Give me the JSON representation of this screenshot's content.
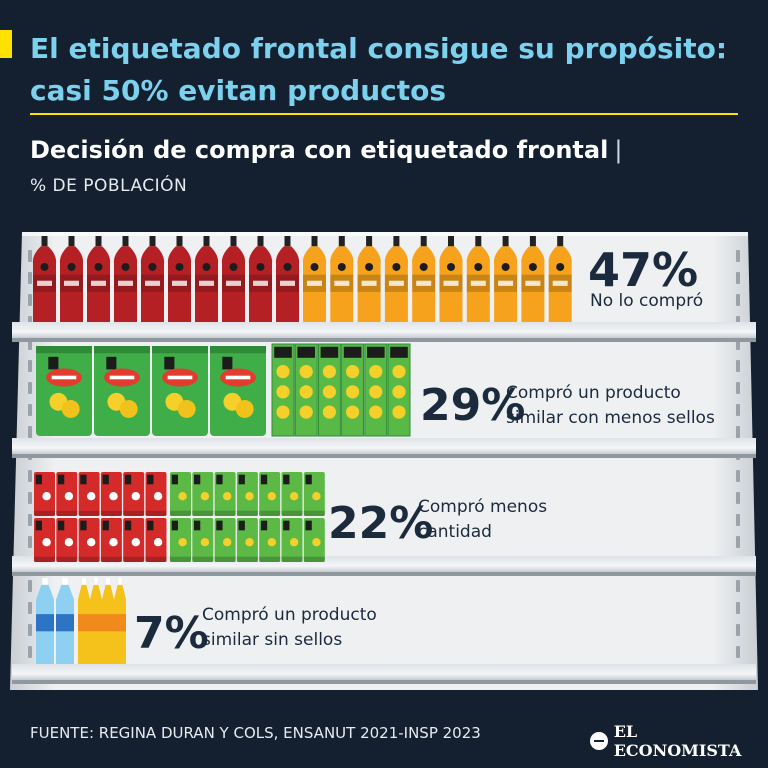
{
  "header": {
    "title": "El etiquetado frontal consigue su propósito: casi 50% evitan productos",
    "subtitle": "Decisión de compra con etiquetado frontal",
    "subtitle_separator": "|",
    "unit": "% DE POBLACIÓN"
  },
  "chart_data": {
    "type": "bar",
    "title": "Decisión de compra con etiquetado frontal",
    "ylabel": "% DE POBLACIÓN",
    "categories": [
      "No lo compró",
      "Compró un producto similar con menos sellos",
      "Compró menos cantidad",
      "Compró un producto similar sin sellos"
    ],
    "values": [
      47,
      29,
      22,
      7
    ],
    "value_labels": [
      "47%",
      "29%",
      "22%",
      "7%"
    ],
    "label_lines": [
      [
        "No lo compró"
      ],
      [
        "Compró un producto",
        "similar con menos sellos"
      ],
      [
        "Compró menos",
        "cantidad"
      ],
      [
        "Compró un producto",
        "similar sin sellos"
      ]
    ],
    "products": [
      "soda bottles (red and orange)",
      "chip bags and green boxes",
      "red and green cans",
      "water and yellow bottles"
    ],
    "colors": {
      "soda_red": "#b52025",
      "soda_orange": "#f6a21c",
      "chips_green": "#3fae49",
      "box_green": "#58b947",
      "can_red": "#d52a2a",
      "can_green": "#5cb946",
      "water_blue": "#8ed0f2",
      "juice_yellow": "#f4c21a"
    }
  },
  "footer": {
    "source": "FUENTE: REGINA DURAN Y COLS, ENSANUT 2021-INSP 2023",
    "logo_text": "EL ECONOMISTA",
    "logo_icon": "el-economista-logo-icon"
  },
  "theme": {
    "background": "#14202f",
    "accent": "#ffe100",
    "title_color": "#7cd2ee"
  }
}
